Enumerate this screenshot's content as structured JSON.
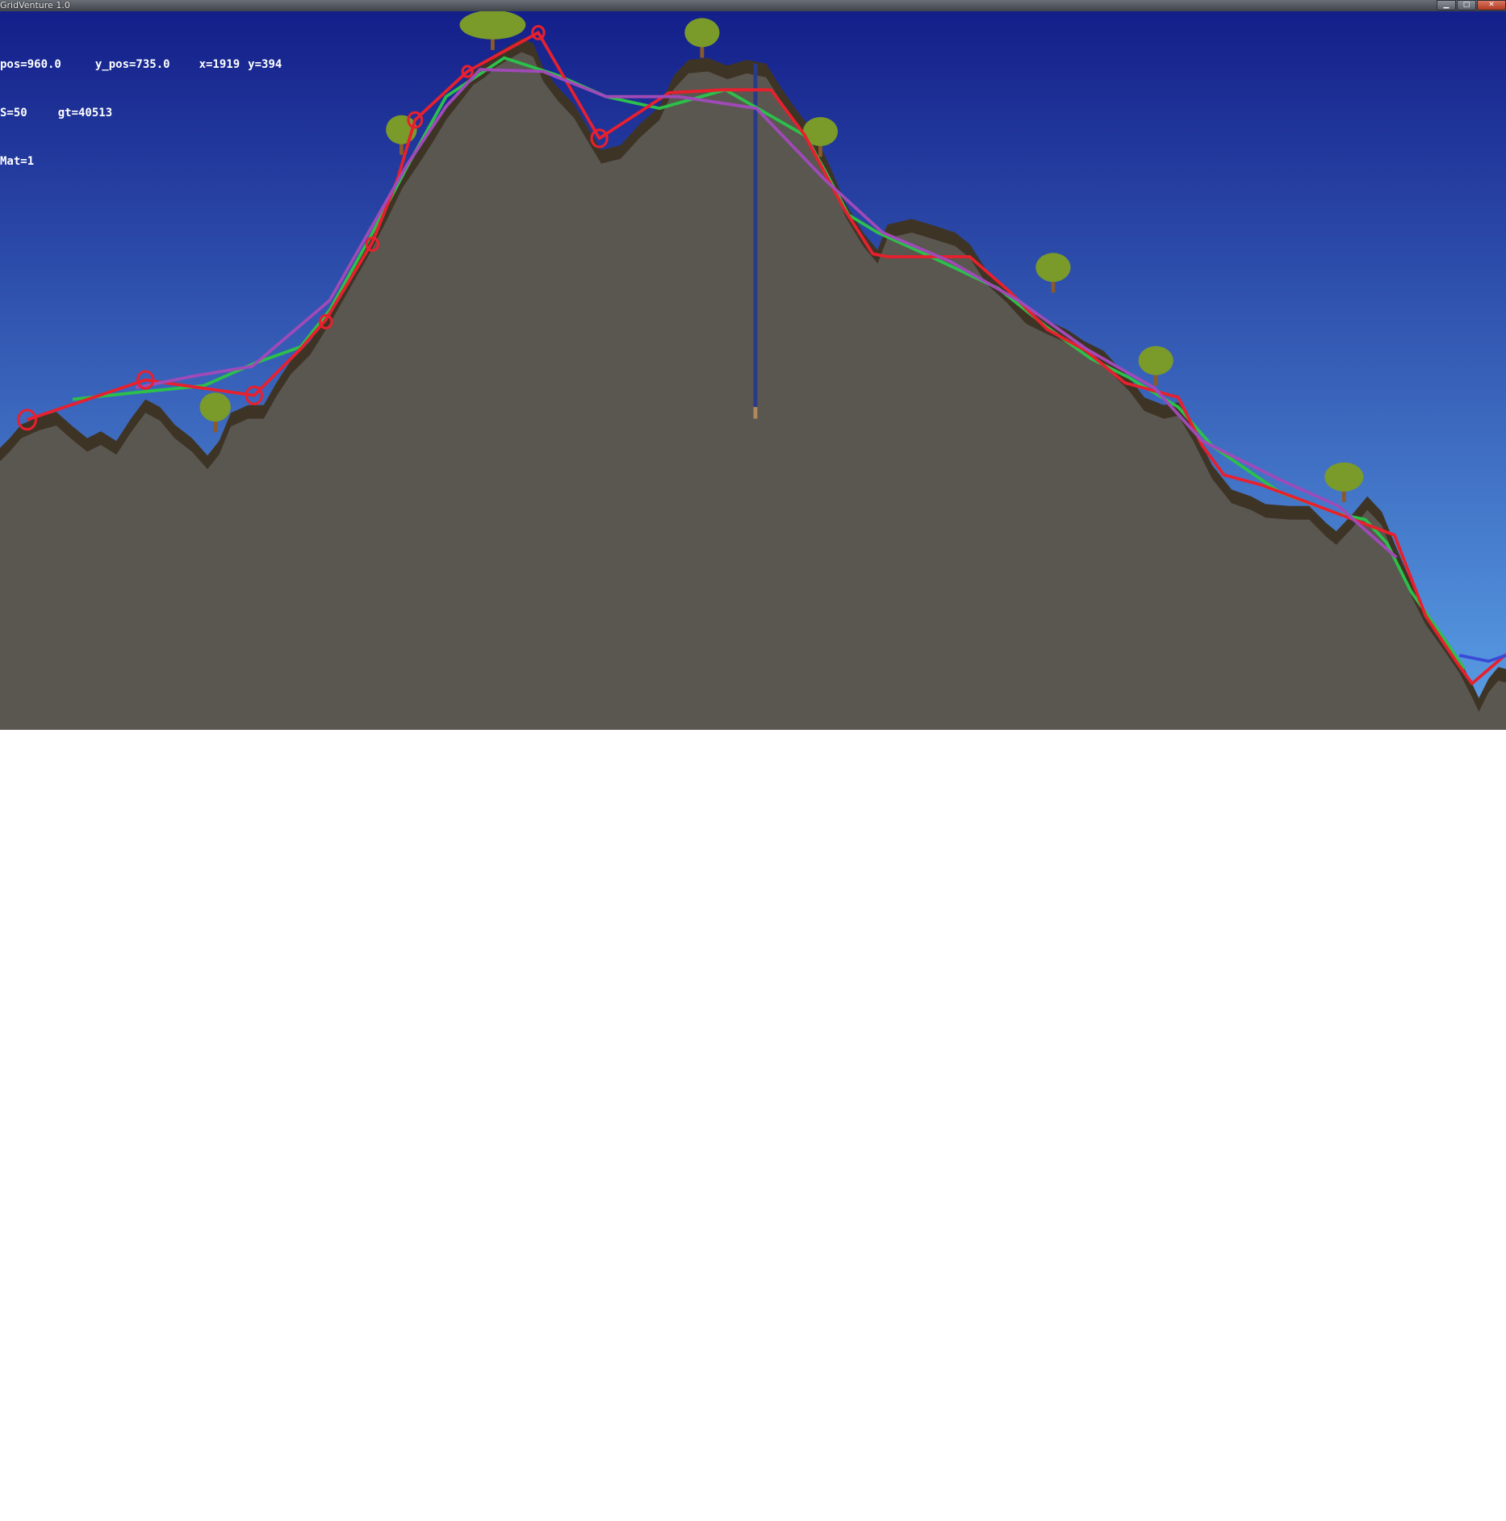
{
  "window": {
    "title": "GridVenture 1.0",
    "buttons": [
      {
        "name": "minimize-button",
        "glyph": "▁"
      },
      {
        "name": "maximize-button",
        "glyph": "□"
      },
      {
        "name": "close-button",
        "glyph": "✕"
      }
    ]
  },
  "hud": {
    "x_pos": "pos=960.0",
    "y_pos": "y_pos=735.0",
    "x": "x=1919",
    "y": "y=394",
    "s": "S=50",
    "gt": "gt=40513",
    "mat": "Mat=1"
  },
  "colors": {
    "sky_top": "#141f8a",
    "sky_bottom": "#5aa0e6",
    "rock": "#5a5650",
    "dirt": "#3e3426",
    "tree_leaves": "#7a9a2a",
    "tree_trunk": "#8a5a2a",
    "line_red": "#e8202e",
    "line_green": "#2cc04a",
    "line_purple": "#a04ab8",
    "line_blue": "#3a4ad8",
    "column": "#2a3a8a",
    "column_tip": "#b08a5a"
  },
  "overlay_lines": [
    "red",
    "green",
    "purple"
  ],
  "world_objects": [
    "terrain",
    "trees",
    "marker-circles",
    "vertical-column"
  ]
}
